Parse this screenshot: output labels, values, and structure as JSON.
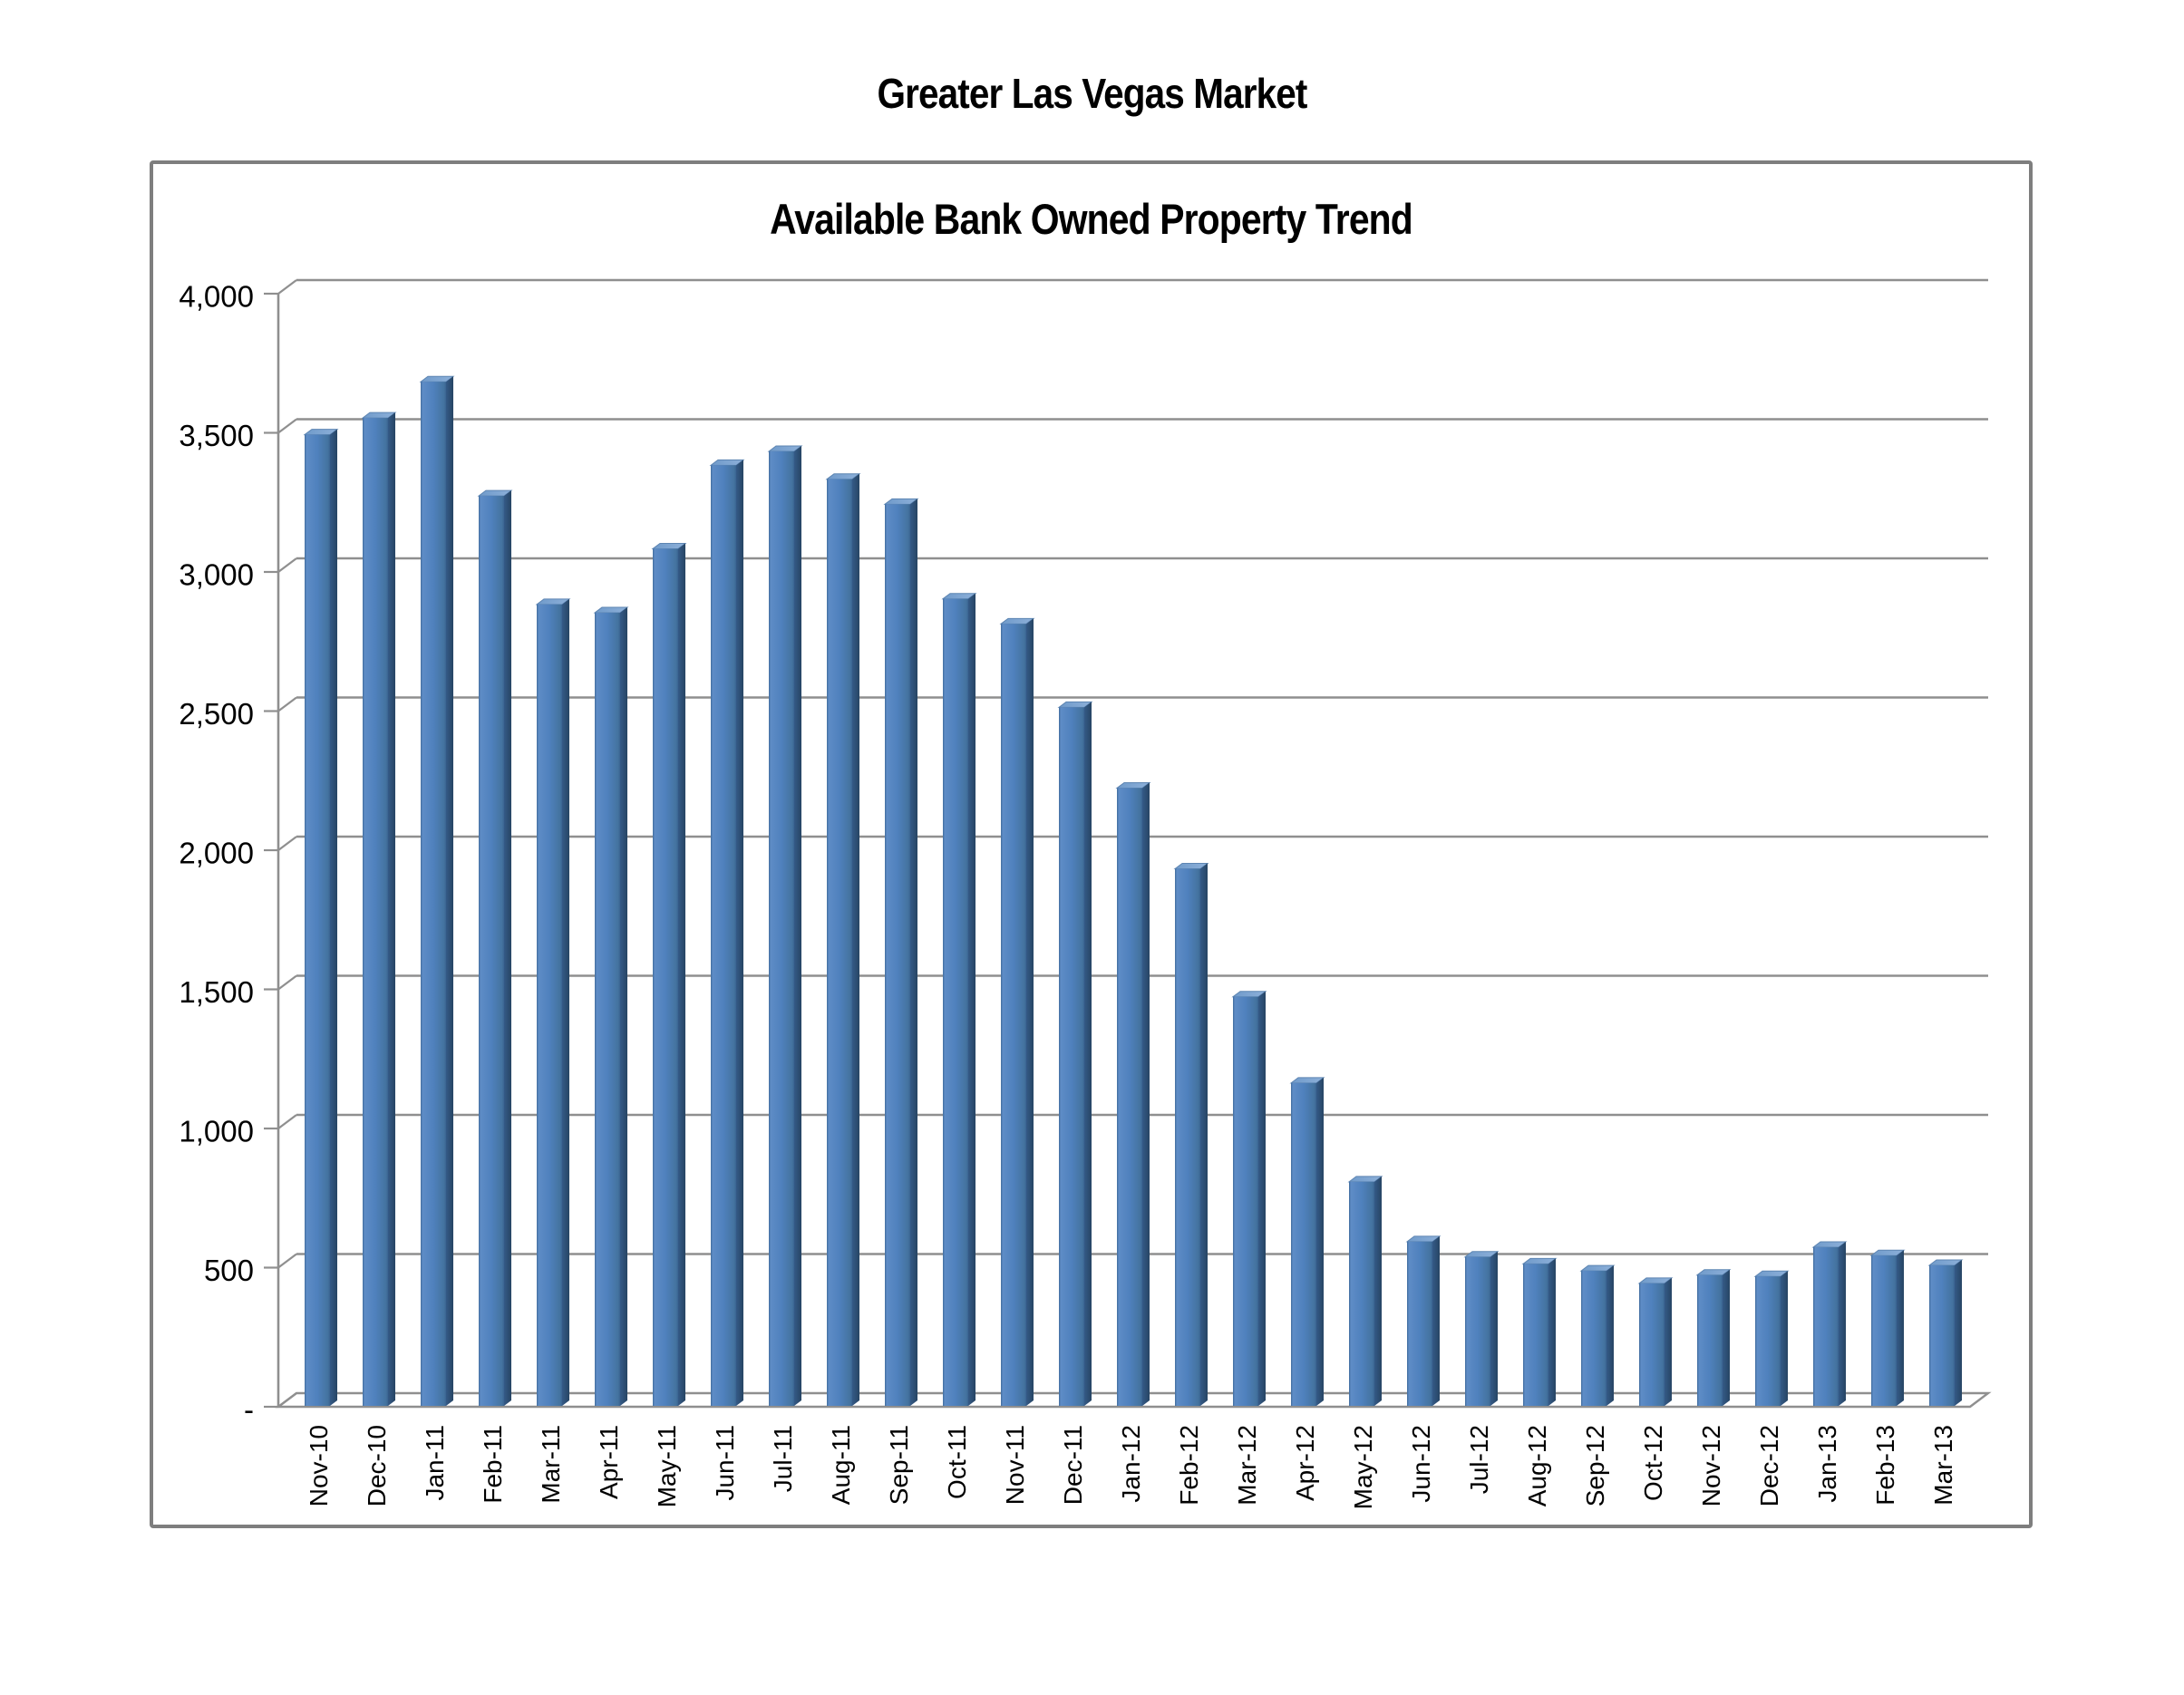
{
  "page": {
    "title": "Greater Las Vegas Market"
  },
  "chart_data": {
    "type": "bar",
    "title": "Available Bank Owned Property Trend",
    "categories": [
      "Nov-10",
      "Dec-10",
      "Jan-11",
      "Feb-11",
      "Mar-11",
      "Apr-11",
      "May-11",
      "Jun-11",
      "Jul-11",
      "Aug-11",
      "Sep-11",
      "Oct-11",
      "Nov-11",
      "Dec-11",
      "Jan-12",
      "Feb-12",
      "Mar-12",
      "Apr-12",
      "May-12",
      "Jun-12",
      "Jul-12",
      "Aug-12",
      "Sep-12",
      "Oct-12",
      "Nov-12",
      "Dec-12",
      "Jan-13",
      "Feb-13",
      "Mar-13"
    ],
    "values": [
      3490,
      3550,
      3680,
      3270,
      2880,
      2850,
      3080,
      3380,
      3430,
      3330,
      3240,
      2900,
      2810,
      2510,
      2220,
      1930,
      1470,
      1160,
      805,
      590,
      535,
      510,
      485,
      440,
      470,
      465,
      570,
      540,
      505
    ],
    "xlabel": "",
    "ylabel": "",
    "ylim": [
      0,
      4000
    ],
    "ytick_interval": 500,
    "ytick_labels": [
      "-",
      "500",
      "1,000",
      "1,500",
      "2,000",
      "2,500",
      "3,000",
      "3,500",
      "4,000"
    ],
    "grid": "horizontal",
    "legend": "none",
    "style_3d": true,
    "colors": {
      "bar_front": "#4f81bd",
      "bar_front_light": "#5e8cc6",
      "bar_front_dark": "#3a6390",
      "bar_side": "#2b4c72",
      "bar_top": "#7ba3d0",
      "bar_top_light": "#8db0d9",
      "gridline": "#8f8f8f",
      "frame_border": "#7e7e7e",
      "text": "#000000",
      "background": "#ffffff"
    }
  }
}
